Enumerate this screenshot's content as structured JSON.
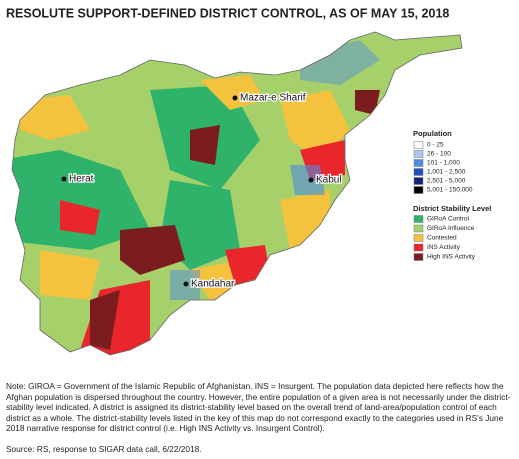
{
  "title": "RESOLUTE SUPPORT-DEFINED DISTRICT CONTROL, AS OF MAY 15, 2018",
  "cities": [
    "Mazar-e Sharif",
    "Herat",
    "Kabul",
    "Kandahar"
  ],
  "population_legend": {
    "title": "Population",
    "items": [
      {
        "label": "0 - 25",
        "color": "#ffffff"
      },
      {
        "label": "26 - 100",
        "color": "#a9c8f0"
      },
      {
        "label": "101 - 1,000",
        "color": "#4f8be0"
      },
      {
        "label": "1,001 - 2,500",
        "color": "#1f4fc0"
      },
      {
        "label": "2,501 - 5,000",
        "color": "#14237a"
      },
      {
        "label": "5,001 - 150,000",
        "color": "#000000"
      }
    ]
  },
  "stability_legend": {
    "title": "District Stability Level",
    "items": [
      {
        "label": "GIRoA Control",
        "color": "#2fb36a"
      },
      {
        "label": "GIRoA Influence",
        "color": "#a5d06a"
      },
      {
        "label": "Contested",
        "color": "#f5c23e"
      },
      {
        "label": "INS Activity",
        "color": "#e8262b"
      },
      {
        "label": "High INS Activity",
        "color": "#7b1c1f"
      }
    ]
  },
  "note": "Note: GIROA = Government of the Islamic Republic of Afghanistan. INS = Insurgent. The population data depicted here reflects how the Afghan population is dispersed throughout the country. However, the entire population of a given area is not necessarily under the district-stability level indicated. A district is assigned its district-stability level based on the overall trend of land-area/population control of each district as a whole. The district-stability levels listed in the key of this map do not correspond exactly to the categories used in RS's June 2018 narrative response for district control (i.e. High INS Activity vs. Insurgent Control).",
  "source": "Source: RS, response to SIGAR data call, 6/22/2018."
}
